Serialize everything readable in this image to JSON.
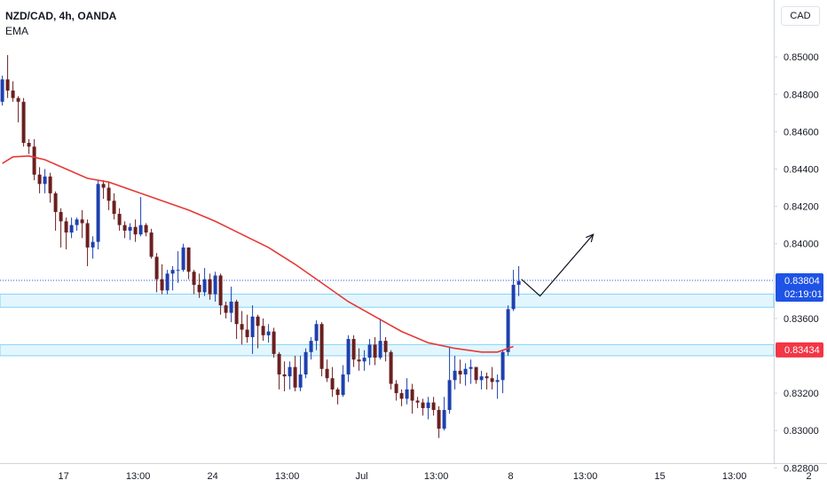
{
  "legend": {
    "symbol": "NZD/CAD, 4h, OANDA",
    "indicator": "EMA"
  },
  "price_scale": {
    "currency_label": "CAD"
  },
  "colors": {
    "up": "#1e40af",
    "down": "#6b1f1f",
    "ema": "#e53935",
    "zone": "#29b6f6",
    "price_tag": "#1e53e5",
    "level_tag": "#f23645",
    "arrow": "#131722"
  },
  "chart_data": {
    "type": "candlestick",
    "symbol": "NZD/CAD",
    "timeframe": "4h",
    "source": "OANDA",
    "ylim": [
      0.8272,
      0.8524
    ],
    "y_ticks": [
      {
        "value": 0.85,
        "label": "0.85000"
      },
      {
        "value": 0.848,
        "label": "0.84800"
      },
      {
        "value": 0.846,
        "label": "0.84600"
      },
      {
        "value": 0.844,
        "label": "0.84400"
      },
      {
        "value": 0.842,
        "label": "0.84200"
      },
      {
        "value": 0.84,
        "label": "0.84000"
      },
      {
        "value": 0.836,
        "label": "0.83600"
      },
      {
        "value": 0.832,
        "label": "0.83200"
      },
      {
        "value": 0.83,
        "label": "0.83000"
      },
      {
        "value": 0.828,
        "label": "0.82800"
      }
    ],
    "x_ticks": [
      {
        "bar": 11.5,
        "label": "17"
      },
      {
        "bar": 25.5,
        "label": "13:00"
      },
      {
        "bar": 39.5,
        "label": "24"
      },
      {
        "bar": 53.5,
        "label": "13:00"
      },
      {
        "bar": 67.5,
        "label": "Jul"
      },
      {
        "bar": 81.5,
        "label": "13:00"
      },
      {
        "bar": 95.5,
        "label": "8"
      },
      {
        "bar": 109.5,
        "label": "13:00"
      },
      {
        "bar": 123.5,
        "label": "15"
      },
      {
        "bar": 137.5,
        "label": "13:00"
      },
      {
        "bar": 151.5,
        "label": "2"
      }
    ],
    "last_price": {
      "value": 0.83804,
      "label": "0.83804",
      "countdown": "02:19:01"
    },
    "marked_level": {
      "value": 0.83434,
      "label": "0.83434"
    },
    "zones": [
      {
        "from": 0.8366,
        "to": 0.8373
      },
      {
        "from": 0.834,
        "to": 0.8346
      }
    ],
    "projection": [
      {
        "bar": 97.5,
        "value": 0.8381
      },
      {
        "bar": 101,
        "value": 0.8372
      },
      {
        "bar": 111,
        "value": 0.8405
      }
    ],
    "ema": [
      {
        "bar": 0,
        "value": 0.8443
      },
      {
        "bar": 2,
        "value": 0.84465
      },
      {
        "bar": 5,
        "value": 0.8447
      },
      {
        "bar": 8,
        "value": 0.8445
      },
      {
        "bar": 12,
        "value": 0.844
      },
      {
        "bar": 16,
        "value": 0.8435
      },
      {
        "bar": 20,
        "value": 0.8433
      },
      {
        "bar": 25,
        "value": 0.8428
      },
      {
        "bar": 30,
        "value": 0.8423
      },
      {
        "bar": 35,
        "value": 0.8418
      },
      {
        "bar": 40,
        "value": 0.8412
      },
      {
        "bar": 45,
        "value": 0.8405
      },
      {
        "bar": 50,
        "value": 0.8398
      },
      {
        "bar": 55,
        "value": 0.8389
      },
      {
        "bar": 60,
        "value": 0.8379
      },
      {
        "bar": 65,
        "value": 0.8369
      },
      {
        "bar": 70,
        "value": 0.8361
      },
      {
        "bar": 75,
        "value": 0.8353
      },
      {
        "bar": 80,
        "value": 0.8347
      },
      {
        "bar": 85,
        "value": 0.8344
      },
      {
        "bar": 90,
        "value": 0.8342
      },
      {
        "bar": 93,
        "value": 0.8342
      },
      {
        "bar": 95,
        "value": 0.8344
      },
      {
        "bar": 96,
        "value": 0.8345
      }
    ],
    "candles": [
      [
        0.8476,
        0.8488,
        0.8474,
        0.849
      ],
      [
        0.8488,
        0.8482,
        0.8478,
        0.8501
      ],
      [
        0.8482,
        0.8478,
        0.8476,
        0.8487
      ],
      [
        0.8478,
        0.8476,
        0.8465,
        0.8479
      ],
      [
        0.8476,
        0.8454,
        0.8452,
        0.8478
      ],
      [
        0.8454,
        0.8452,
        0.8448,
        0.8456
      ],
      [
        0.8452,
        0.8437,
        0.8434,
        0.8456
      ],
      [
        0.8437,
        0.8432,
        0.8427,
        0.8441
      ],
      [
        0.8432,
        0.8436,
        0.8427,
        0.844
      ],
      [
        0.8436,
        0.8427,
        0.8422,
        0.8438
      ],
      [
        0.8427,
        0.8417,
        0.8407,
        0.8428
      ],
      [
        0.8417,
        0.8412,
        0.8398,
        0.8419
      ],
      [
        0.8412,
        0.8406,
        0.8397,
        0.8414
      ],
      [
        0.8406,
        0.841,
        0.8403,
        0.8414
      ],
      [
        0.841,
        0.8413,
        0.8407,
        0.8414
      ],
      [
        0.8413,
        0.8411,
        0.8403,
        0.8418
      ],
      [
        0.8411,
        0.8398,
        0.8388,
        0.8413
      ],
      [
        0.8398,
        0.8401,
        0.8392,
        0.8404
      ],
      [
        0.8401,
        0.8432,
        0.8397,
        0.8434
      ],
      [
        0.8432,
        0.843,
        0.8424,
        0.8434
      ],
      [
        0.843,
        0.8423,
        0.8418,
        0.8433
      ],
      [
        0.8423,
        0.8416,
        0.8413,
        0.8427
      ],
      [
        0.8416,
        0.841,
        0.8407,
        0.8419
      ],
      [
        0.841,
        0.8407,
        0.8403,
        0.8412
      ],
      [
        0.8407,
        0.8409,
        0.8402,
        0.8411
      ],
      [
        0.8409,
        0.8405,
        0.8401,
        0.8413
      ],
      [
        0.8405,
        0.841,
        0.8404,
        0.8425
      ],
      [
        0.841,
        0.8406,
        0.8404,
        0.8411
      ],
      [
        0.8406,
        0.8393,
        0.8392,
        0.8408
      ],
      [
        0.8393,
        0.8381,
        0.8374,
        0.8395
      ],
      [
        0.8381,
        0.8375,
        0.8373,
        0.8389
      ],
      [
        0.8375,
        0.8384,
        0.8373,
        0.8386
      ],
      [
        0.8384,
        0.8386,
        0.8375,
        0.8388
      ],
      [
        0.8386,
        0.8386,
        0.8379,
        0.8396
      ],
      [
        0.8386,
        0.8398,
        0.8385,
        0.84
      ],
      [
        0.8398,
        0.8385,
        0.8381,
        0.8398
      ],
      [
        0.8385,
        0.8378,
        0.8373,
        0.8386
      ],
      [
        0.8378,
        0.8374,
        0.8371,
        0.8384
      ],
      [
        0.8374,
        0.8381,
        0.8372,
        0.8387
      ],
      [
        0.8381,
        0.8373,
        0.837,
        0.8384
      ],
      [
        0.8373,
        0.8383,
        0.8369,
        0.8385
      ],
      [
        0.8383,
        0.8367,
        0.8362,
        0.8384
      ],
      [
        0.8367,
        0.8363,
        0.836,
        0.8369
      ],
      [
        0.8363,
        0.8369,
        0.8358,
        0.8377
      ],
      [
        0.8369,
        0.8357,
        0.8349,
        0.837
      ],
      [
        0.8357,
        0.8354,
        0.8346,
        0.8364
      ],
      [
        0.8354,
        0.835,
        0.8347,
        0.8362
      ],
      [
        0.835,
        0.8361,
        0.8341,
        0.8367
      ],
      [
        0.8361,
        0.8356,
        0.8344,
        0.8362
      ],
      [
        0.8356,
        0.8351,
        0.8348,
        0.836
      ],
      [
        0.8351,
        0.8353,
        0.8347,
        0.8357
      ],
      [
        0.8353,
        0.8341,
        0.8339,
        0.8355
      ],
      [
        0.8341,
        0.833,
        0.8322,
        0.8342
      ],
      [
        0.833,
        0.8329,
        0.8321,
        0.8337
      ],
      [
        0.8329,
        0.8334,
        0.8322,
        0.8337
      ],
      [
        0.8334,
        0.8323,
        0.8321,
        0.834
      ],
      [
        0.8323,
        0.833,
        0.8321,
        0.834
      ],
      [
        0.833,
        0.8342,
        0.8328,
        0.8344
      ],
      [
        0.8342,
        0.8348,
        0.8338,
        0.835
      ],
      [
        0.8348,
        0.8357,
        0.8343,
        0.8359
      ],
      [
        0.8357,
        0.8333,
        0.8329,
        0.8358
      ],
      [
        0.8333,
        0.8328,
        0.8326,
        0.8338
      ],
      [
        0.8328,
        0.8322,
        0.8318,
        0.8334
      ],
      [
        0.8322,
        0.8319,
        0.8314,
        0.8323
      ],
      [
        0.8319,
        0.833,
        0.8318,
        0.8335
      ],
      [
        0.833,
        0.8349,
        0.8326,
        0.8351
      ],
      [
        0.8349,
        0.8338,
        0.8334,
        0.8351
      ],
      [
        0.8338,
        0.8337,
        0.8332,
        0.8344
      ],
      [
        0.8337,
        0.8339,
        0.8332,
        0.8343
      ],
      [
        0.8339,
        0.8346,
        0.8335,
        0.8349
      ],
      [
        0.8346,
        0.8339,
        0.8335,
        0.835
      ],
      [
        0.8339,
        0.8348,
        0.8338,
        0.836
      ],
      [
        0.8348,
        0.8342,
        0.8337,
        0.835
      ],
      [
        0.8342,
        0.8325,
        0.8322,
        0.8343
      ],
      [
        0.8325,
        0.832,
        0.8316,
        0.8327
      ],
      [
        0.832,
        0.8317,
        0.8313,
        0.8322
      ],
      [
        0.8317,
        0.8322,
        0.8314,
        0.8328
      ],
      [
        0.8322,
        0.8316,
        0.8309,
        0.8325
      ],
      [
        0.8316,
        0.8315,
        0.8312,
        0.8318
      ],
      [
        0.8315,
        0.8312,
        0.8308,
        0.8317
      ],
      [
        0.8312,
        0.8315,
        0.8306,
        0.8318
      ],
      [
        0.8315,
        0.8311,
        0.8308,
        0.8318
      ],
      [
        0.8311,
        0.8301,
        0.8296,
        0.8313
      ],
      [
        0.8301,
        0.8311,
        0.83,
        0.8318
      ],
      [
        0.8311,
        0.8327,
        0.8309,
        0.8345
      ],
      [
        0.8327,
        0.8332,
        0.8322,
        0.834
      ],
      [
        0.8332,
        0.833,
        0.8325,
        0.8338
      ],
      [
        0.833,
        0.8333,
        0.8324,
        0.8336
      ],
      [
        0.8333,
        0.8334,
        0.8325,
        0.8338
      ],
      [
        0.8334,
        0.8327,
        0.8325,
        0.8334
      ],
      [
        0.8327,
        0.8329,
        0.8322,
        0.8332
      ],
      [
        0.8329,
        0.8328,
        0.8322,
        0.8331
      ],
      [
        0.8328,
        0.8326,
        0.8322,
        0.8334
      ],
      [
        0.8326,
        0.8327,
        0.8317,
        0.833
      ],
      [
        0.8327,
        0.8342,
        0.832,
        0.8343
      ],
      [
        0.8342,
        0.8365,
        0.834,
        0.8367
      ],
      [
        0.8365,
        0.8378,
        0.8364,
        0.8386
      ],
      [
        0.8378,
        0.838,
        0.8372,
        0.8388
      ]
    ]
  }
}
